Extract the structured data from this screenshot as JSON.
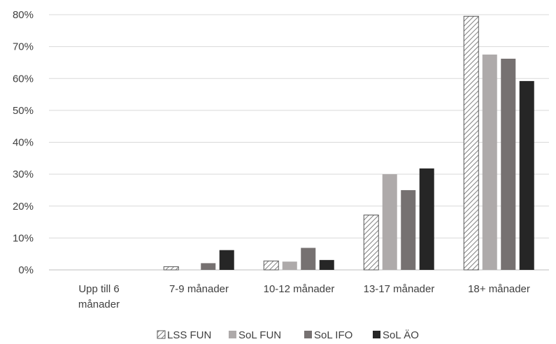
{
  "chart_data": {
    "type": "bar",
    "categories": [
      [
        "Upp till 6",
        "månader"
      ],
      [
        "7-9 månader"
      ],
      [
        "10-12 månader"
      ],
      [
        "13-17 månader"
      ],
      [
        "18+ månader"
      ]
    ],
    "series": [
      {
        "name": "LSS FUN",
        "color": "#ffffff",
        "pattern": "hatch",
        "values": [
          0,
          1,
          2.8,
          17.2,
          79.5
        ]
      },
      {
        "name": "SoL FUN",
        "color": "#aeaaaa",
        "values": [
          0,
          0,
          2.6,
          30.0,
          67.5
        ]
      },
      {
        "name": "SoL IFO",
        "color": "#767171",
        "values": [
          0,
          2.1,
          6.9,
          25.0,
          66.2
        ]
      },
      {
        "name": "SoL ÄO",
        "color": "#262626",
        "values": [
          0,
          6.2,
          3.1,
          31.8,
          59.2
        ]
      }
    ],
    "ylim": [
      0,
      80
    ],
    "yticks": [
      "0%",
      "10%",
      "20%",
      "30%",
      "40%",
      "50%",
      "60%",
      "70%",
      "80%"
    ],
    "grid": true,
    "legend_position": "bottom"
  }
}
